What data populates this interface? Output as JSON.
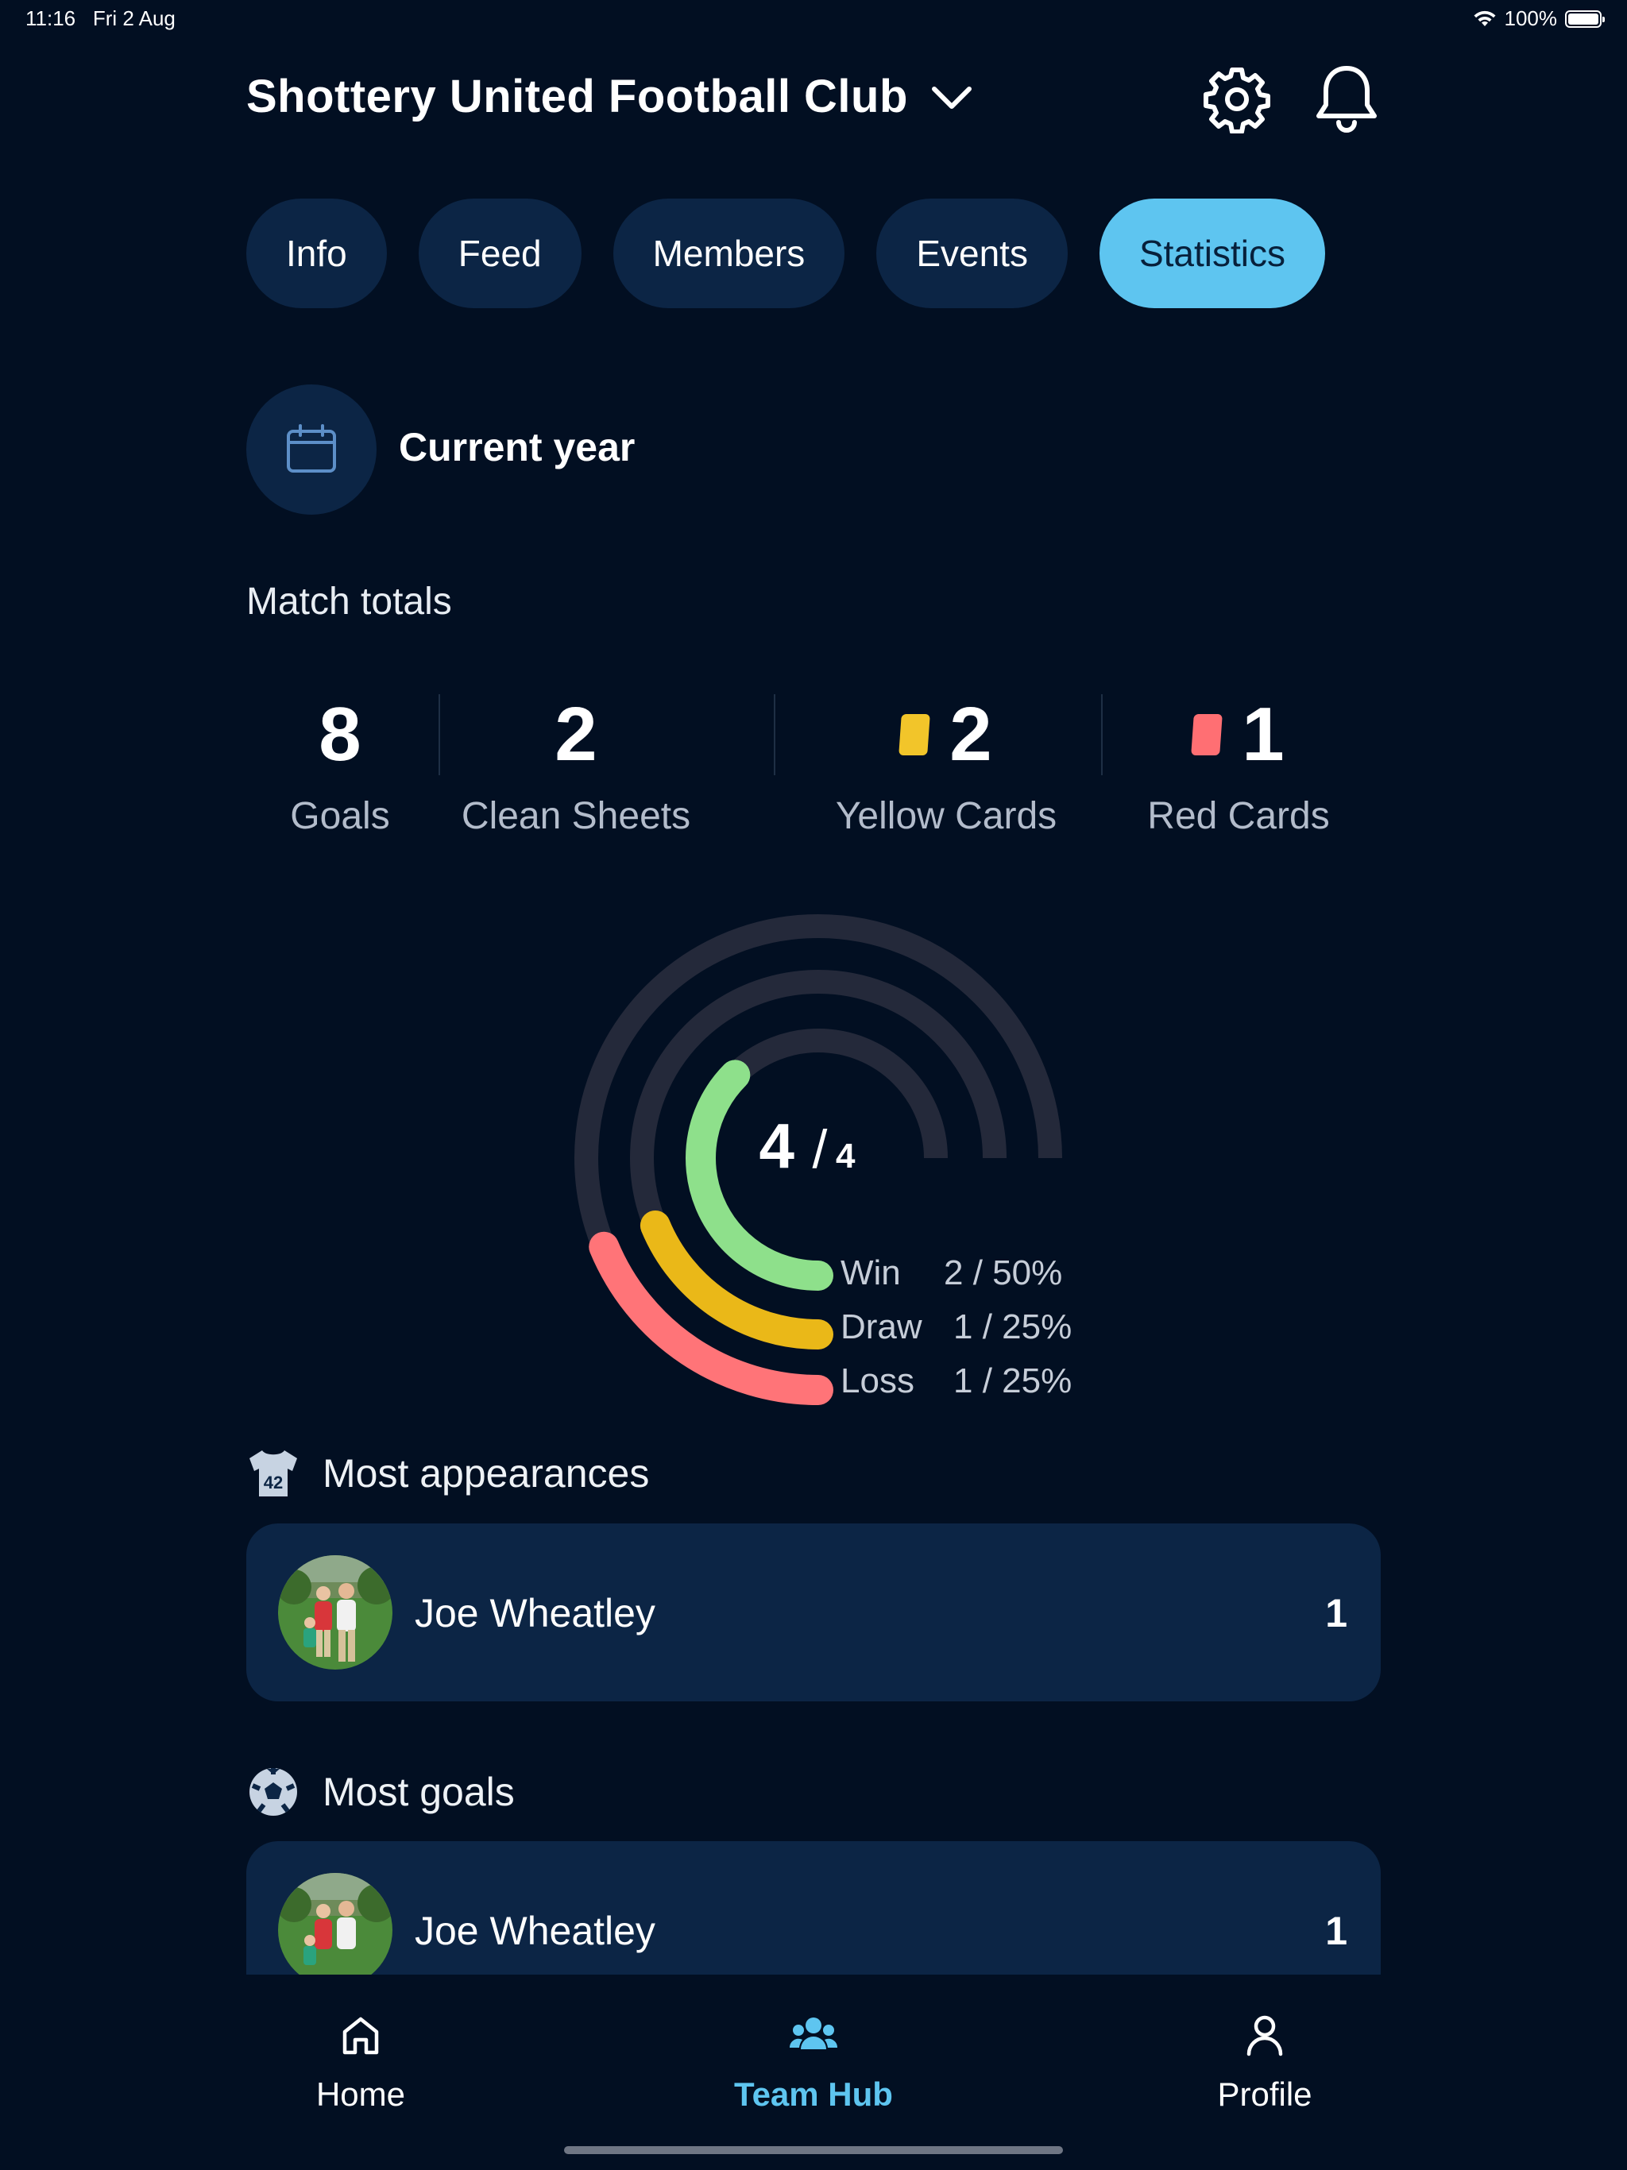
{
  "status_bar": {
    "time": "11:16",
    "date": "Fri 2 Aug",
    "battery": "100%"
  },
  "header": {
    "club_name": "Shottery United Football Club",
    "icons": [
      "chevron-down-icon",
      "gear-icon",
      "bell-icon"
    ]
  },
  "tabs": [
    {
      "label": "Info",
      "active": false
    },
    {
      "label": "Feed",
      "active": false
    },
    {
      "label": "Members",
      "active": false
    },
    {
      "label": "Events",
      "active": false
    },
    {
      "label": "Statistics",
      "active": true
    }
  ],
  "period": {
    "label": "Current year",
    "icon": "calendar-icon"
  },
  "match_totals": {
    "title": "Match totals",
    "items": [
      {
        "value": "8",
        "label": "Goals"
      },
      {
        "value": "2",
        "label": "Clean Sheets"
      },
      {
        "value": "2",
        "label": "Yellow Cards",
        "card_color": "#f2c52a"
      },
      {
        "value": "1",
        "label": "Red Cards",
        "card_color": "#ff6f73"
      }
    ]
  },
  "results": {
    "played": "4",
    "total": "4",
    "separator": "/",
    "rows": [
      {
        "name": "Win",
        "stat": "2 / 50%",
        "fraction": 0.5,
        "color": "#8ee08b"
      },
      {
        "name": "Draw",
        "stat": "1 / 25%",
        "fraction": 0.25,
        "color": "#eab818"
      },
      {
        "name": "Loss",
        "stat": "1 / 25%",
        "fraction": 0.25,
        "color": "#ff7478"
      }
    ],
    "track_color": "#24293a"
  },
  "leaders": [
    {
      "title": "Most appearances",
      "icon": "shirt-icon",
      "player": "Joe Wheatley",
      "count": "1"
    },
    {
      "title": "Most goals",
      "icon": "football-icon",
      "player": "Joe Wheatley",
      "count": "1"
    }
  ],
  "bottom_nav": [
    {
      "label": "Home",
      "icon": "home-icon",
      "active": false
    },
    {
      "label": "Team Hub",
      "icon": "team-icon",
      "active": true
    },
    {
      "label": "Profile",
      "icon": "profile-icon",
      "active": false
    }
  ],
  "colors": {
    "background": "#020f22",
    "surface": "#0c2545",
    "accent": "#5ec5f0"
  }
}
